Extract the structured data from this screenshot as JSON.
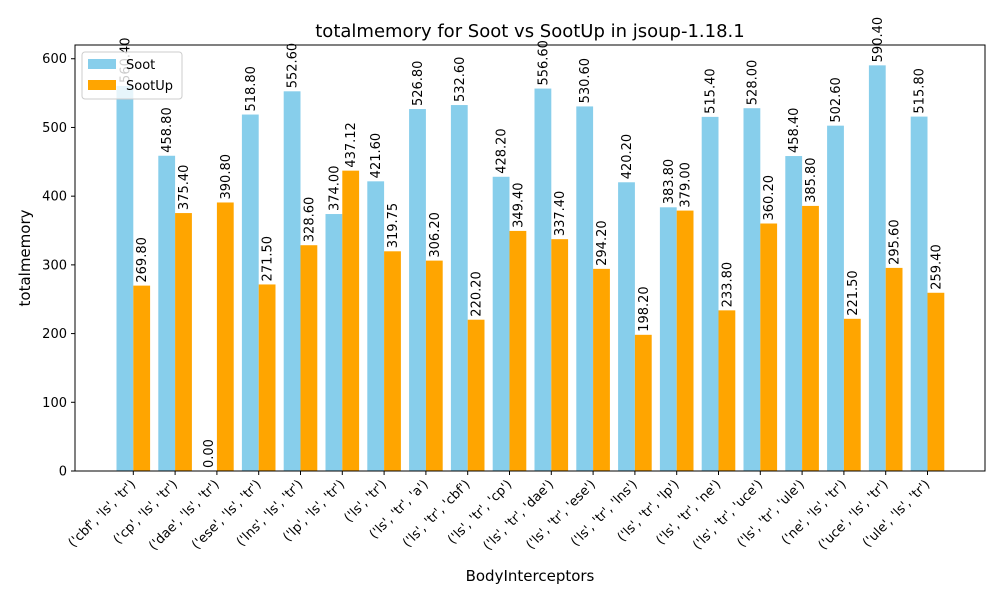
{
  "chart_data": {
    "type": "bar",
    "title": "totalmemory for Soot vs SootUp in jsoup-1.18.1",
    "xlabel": "BodyInterceptors",
    "ylabel": "totalmemory",
    "ylim": [
      0,
      620
    ],
    "yticks": [
      "0",
      "100",
      "200",
      "300",
      "400",
      "500",
      "600"
    ],
    "legend_position": "top-left",
    "grid": false,
    "categories": [
      "('cbf', 'ls', 'tr')",
      "('cp', 'ls', 'tr')",
      "('dae', 'ls', 'tr')",
      "('ese', 'ls', 'tr')",
      "('lns', 'ls', 'tr')",
      "('lp', 'ls', 'tr')",
      "('ls', 'tr')",
      "('ls', 'tr', 'a')",
      "('ls', 'tr', 'cbf')",
      "('ls', 'tr', 'cp')",
      "('ls', 'tr', 'dae')",
      "('ls', 'tr', 'ese')",
      "('ls', 'tr', 'lns')",
      "('ls', 'tr', 'lp')",
      "('ls', 'tr', 'ne')",
      "('ls', 'tr', 'uce')",
      "('ls', 'tr', 'ule')",
      "('ne', 'ls', 'tr')",
      "('uce', 'ls', 'tr')",
      "('ule', 'ls', 'tr')"
    ],
    "series": [
      {
        "name": "Soot",
        "color": "#87ceeb",
        "values": [
          560.4,
          458.8,
          0.0,
          518.8,
          552.6,
          374.0,
          421.6,
          526.8,
          532.6,
          428.2,
          556.6,
          530.6,
          420.2,
          383.8,
          515.4,
          528.0,
          458.4,
          502.6,
          590.4,
          515.8
        ],
        "labels": [
          "560.40",
          "458.80",
          "0.00",
          "518.80",
          "552.60",
          "374.00",
          "421.60",
          "526.80",
          "532.60",
          "428.20",
          "556.60",
          "530.60",
          "420.20",
          "383.80",
          "515.40",
          "528.00",
          "458.40",
          "502.60",
          "590.40",
          "515.80"
        ]
      },
      {
        "name": "SootUp",
        "color": "#ffa500",
        "values": [
          269.8,
          375.4,
          390.8,
          271.5,
          328.6,
          437.12,
          319.75,
          306.2,
          220.2,
          349.4,
          337.4,
          294.2,
          198.2,
          379.0,
          233.8,
          360.2,
          385.8,
          221.5,
          295.6,
          259.4
        ],
        "labels": [
          "269.80",
          "375.40",
          "390.80",
          "271.50",
          "328.60",
          "437.12",
          "319.75",
          "306.20",
          "220.20",
          "349.40",
          "337.40",
          "294.20",
          "198.20",
          "379.00",
          "233.80",
          "360.20",
          "385.80",
          "221.50",
          "295.60",
          "259.40"
        ]
      }
    ]
  }
}
